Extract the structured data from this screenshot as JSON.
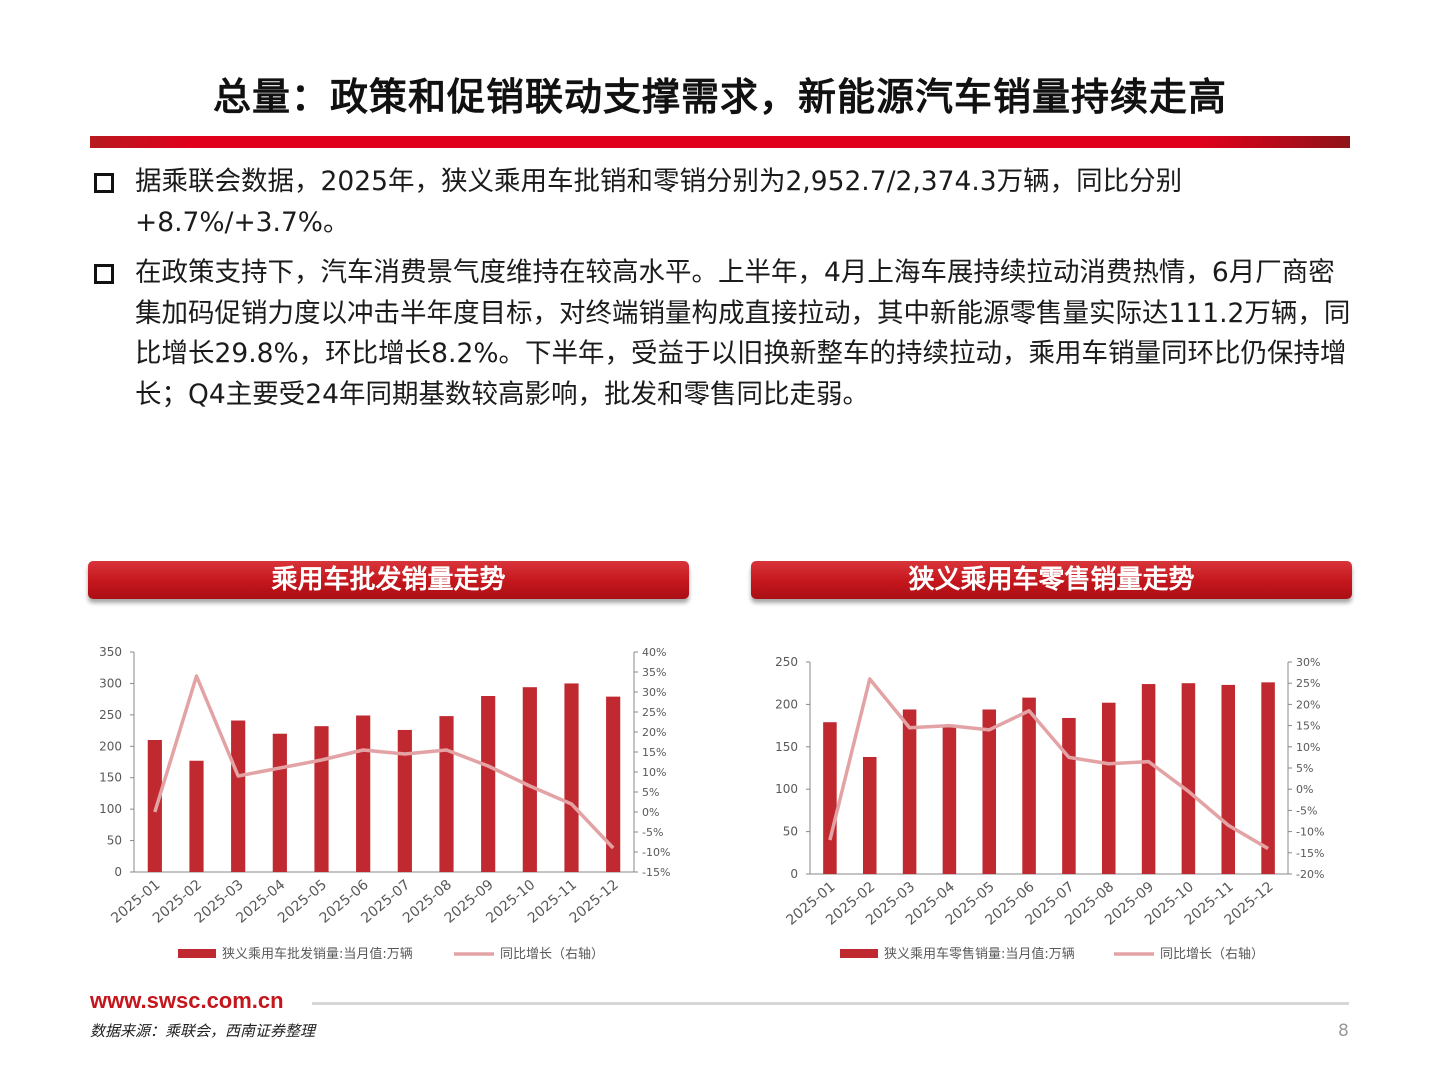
{
  "slide": {
    "title": "总量：政策和促销联动支撑需求，新能源汽车销量持续走高",
    "bullets": [
      "据乘联会数据，2025年，狭义乘用车批销和零销分别为2,952.7/2,374.3万辆，同比分别+8.7%/+3.7%。",
      "在政策支持下，汽车消费景气度维持在较高水平。上半年，4月上海车展持续拉动消费热情，6月厂商密集加码促销力度以冲击半年度目标，对终端销量构成直接拉动，其中新能源零售量实际达111.2万辆，同比增长29.8%，环比增长8.2%。下半年，受益于以旧换新整车的持续拉动，乘用车销量同环比仍保持增长；Q4主要受24年同期基数较高影响，批发和零售同比走弱。"
    ],
    "footer_url": "www.swsc.com.cn",
    "source": "数据来源：乘联会，西南证券整理",
    "page_number": "8"
  },
  "colors": {
    "accent": "#c4161c",
    "bar": "#c0292f",
    "line": "#e3a3a5"
  },
  "chart_data": [
    {
      "type": "bar",
      "header": "乘用车批发销量走势",
      "categories": [
        "2025-01",
        "2025-02",
        "2025-03",
        "2025-04",
        "2025-05",
        "2025-06",
        "2025-07",
        "2025-08",
        "2025-09",
        "2025-10",
        "2025-11",
        "2025-12"
      ],
      "series": [
        {
          "name": "狭义乘用车批发销量:当月值:万辆",
          "type": "bar",
          "axis": "left",
          "values": [
            210,
            177,
            241,
            220,
            232,
            249,
            226,
            248,
            280,
            294,
            300,
            279
          ]
        },
        {
          "name": "同比增长（右轴）",
          "type": "line",
          "axis": "right",
          "values": [
            0,
            34,
            9,
            11,
            13,
            15.5,
            14.5,
            15.5,
            11.5,
            6.5,
            2,
            -9
          ]
        }
      ],
      "ylim": [
        0,
        350
      ],
      "yticks": [
        0,
        50,
        100,
        150,
        200,
        250,
        300,
        350
      ],
      "y2lim": [
        -15,
        40
      ],
      "y2ticks": [
        "-15%",
        "-10%",
        "-5%",
        "0%",
        "5%",
        "10%",
        "15%",
        "20%",
        "25%",
        "30%",
        "35%",
        "40%"
      ],
      "legend": "bottom"
    },
    {
      "type": "bar",
      "header": "狭义乘用车零售销量走势",
      "categories": [
        "2025-01",
        "2025-02",
        "2025-03",
        "2025-04",
        "2025-05",
        "2025-06",
        "2025-07",
        "2025-08",
        "2025-09",
        "2025-10",
        "2025-11",
        "2025-12"
      ],
      "series": [
        {
          "name": "狭义乘用车零售销量:当月值:万辆",
          "type": "bar",
          "axis": "left",
          "values": [
            179,
            138,
            194,
            175,
            194,
            208,
            184,
            202,
            224,
            225,
            223,
            226
          ]
        },
        {
          "name": "同比增长（右轴）",
          "type": "line",
          "axis": "right",
          "values": [
            -12,
            26,
            14.5,
            15,
            14,
            18.5,
            7.5,
            6,
            6.5,
            -0.5,
            -8.5,
            -14
          ]
        }
      ],
      "ylim": [
        0,
        250
      ],
      "yticks": [
        0,
        50,
        100,
        150,
        200,
        250
      ],
      "y2lim": [
        -20,
        30
      ],
      "y2ticks": [
        "-20%",
        "-15%",
        "-10%",
        "-5%",
        "0%",
        "5%",
        "10%",
        "15%",
        "20%",
        "25%",
        "30%"
      ],
      "legend": "bottom"
    }
  ]
}
